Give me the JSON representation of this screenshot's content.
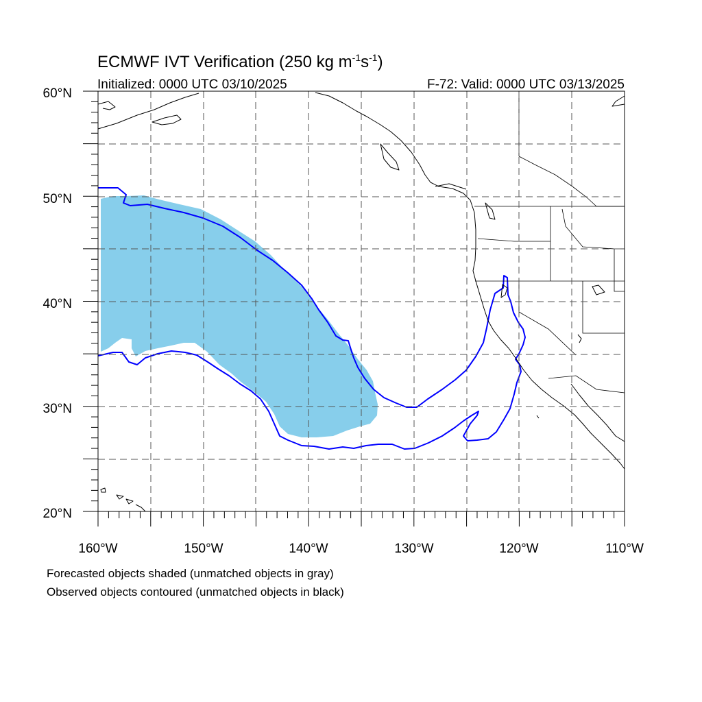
{
  "title": {
    "main": "ECMWF IVT Verification (250 kg m",
    "sup1": "-1",
    "mid": "s",
    "sup2": "-1",
    "close": ")"
  },
  "subtitle_left": "Initialized: 0000 UTC 03/10/2025",
  "subtitle_right": "F-72: Valid: 0000 UTC 03/13/2025",
  "lat_labels": [
    "60°N",
    "50°N",
    "40°N",
    "30°N",
    "20°N"
  ],
  "lon_labels": [
    "160°W",
    "150°W",
    "140°W",
    "130°W",
    "120°W",
    "110°W"
  ],
  "footnotes": [
    "Forecasted objects shaded (unmatched objects in gray)",
    "Observed objects contoured (unmatched objects in black)"
  ],
  "colors": {
    "forecast_fill": "#87ceeb",
    "observed_contour": "#0000ff",
    "coastline": "#000000",
    "grid": "#555555"
  }
}
